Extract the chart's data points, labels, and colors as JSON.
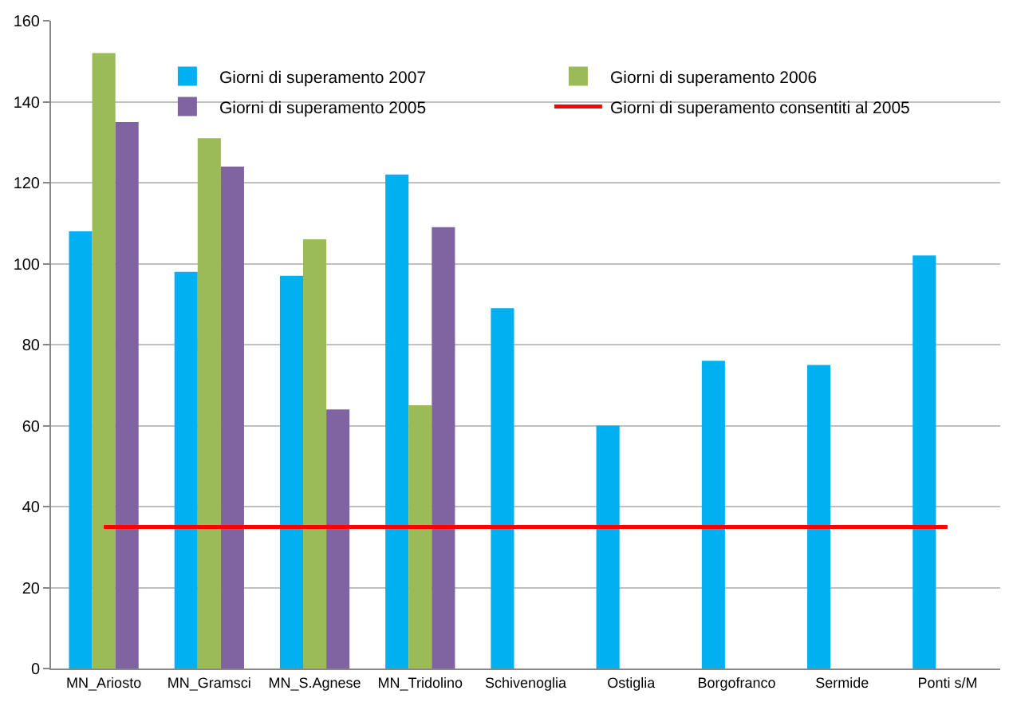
{
  "chart_data": {
    "type": "bar",
    "categories": [
      "MN_Ariosto",
      "MN_Gramsci",
      "MN_S.Agnese",
      "MN_Tridolino",
      "Schivenoglia",
      "Ostiglia",
      "Borgofranco",
      "Sermide",
      "Ponti s/M"
    ],
    "series": [
      {
        "name": "Giorni di superamento 2007",
        "color": "#00b0f0",
        "values": [
          108,
          98,
          97,
          122,
          89,
          60,
          76,
          75,
          102
        ]
      },
      {
        "name": "Giorni di superamento 2006",
        "color": "#9bbb59",
        "values": [
          152,
          131,
          106,
          65,
          null,
          null,
          null,
          null,
          null
        ]
      },
      {
        "name": "Giorni di superamento 2005",
        "color": "#8064a2",
        "values": [
          135,
          124,
          64,
          109,
          null,
          null,
          null,
          null,
          null
        ]
      },
      {
        "name": "Giorni di superamento consentiti al 2005",
        "type": "line",
        "color": "#ff0000",
        "values": [
          35,
          35,
          35,
          35,
          35,
          35,
          35,
          35,
          35
        ]
      }
    ],
    "ylim": [
      0,
      160
    ],
    "yticks": [
      0,
      20,
      40,
      60,
      80,
      100,
      120,
      140,
      160
    ],
    "grid": "y",
    "legend": "top",
    "marker": "none",
    "line_style": "solid"
  }
}
